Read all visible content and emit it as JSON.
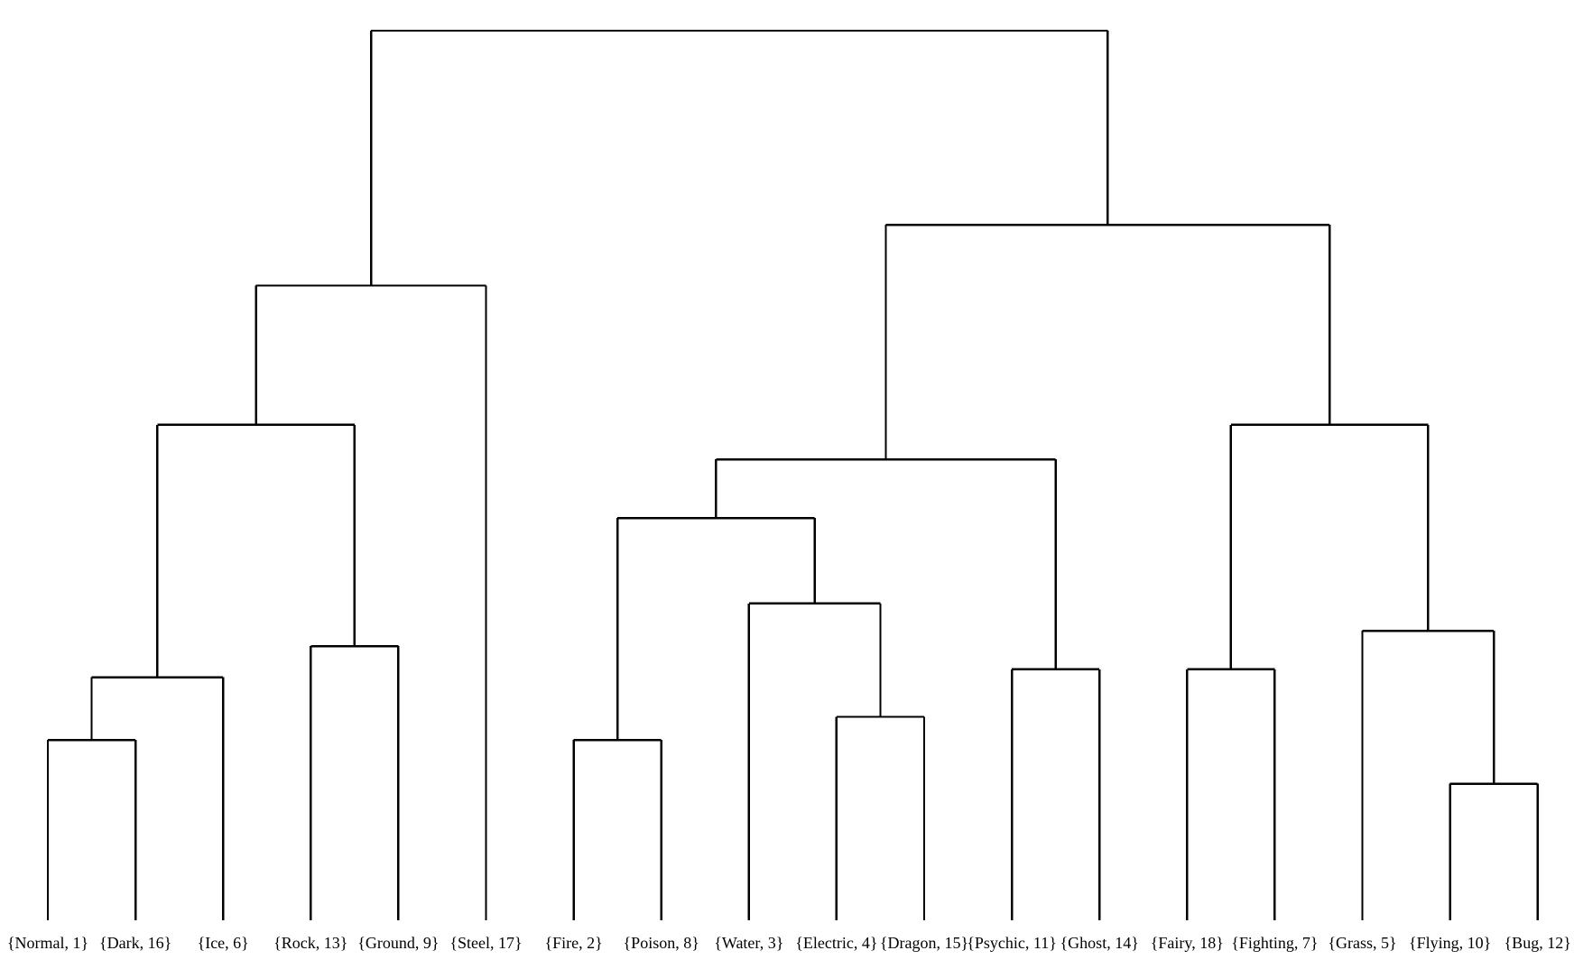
{
  "chart_data": {
    "type": "dendrogram",
    "orientation": "top-down",
    "line_color": "#000000",
    "background": "#ffffff",
    "leaves": [
      "{Normal, 1}",
      "{Dark, 16}",
      "{Ice, 6}",
      "{Rock, 13}",
      "{Ground, 9}",
      "{Steel, 17}",
      "{Fire, 2}",
      "{Poison, 8}",
      "{Water, 3}",
      "{Electric, 4}",
      "{Dragon, 15}",
      "{Psychic, 11}",
      "{Ghost, 14}",
      "{Fairy, 18}",
      "{Fighting, 7}",
      "{Grass, 5}",
      "{Flying, 10}",
      "{Bug, 12}"
    ],
    "tree": {
      "height": 1.0,
      "children": [
        {
          "height": 0.7135,
          "children": [
            {
              "height": 0.557,
              "children": [
                {
                  "height": 0.2731,
                  "children": [
                    {
                      "height": 0.2026,
                      "children": [
                        {
                          "leaf": 0
                        },
                        {
                          "leaf": 1
                        }
                      ]
                    },
                    {
                      "leaf": 2
                    }
                  ]
                },
                {
                  "height": 0.3081,
                  "children": [
                    {
                      "leaf": 3
                    },
                    {
                      "leaf": 4
                    }
                  ]
                }
              ]
            },
            {
              "leaf": 5
            }
          ]
        },
        {
          "height": 0.7818,
          "children": [
            {
              "height": 0.5182,
              "children": [
                {
                  "height": 0.4522,
                  "children": [
                    {
                      "height": 0.2026,
                      "children": [
                        {
                          "leaf": 6
                        },
                        {
                          "leaf": 7
                        }
                      ]
                    },
                    {
                      "height": 0.3561,
                      "children": [
                        {
                          "leaf": 8
                        },
                        {
                          "height": 0.2287,
                          "children": [
                            {
                              "leaf": 9
                            },
                            {
                              "leaf": 10
                            }
                          ]
                        }
                      ]
                    }
                  ]
                },
                {
                  "height": 0.2822,
                  "children": [
                    {
                      "leaf": 11
                    },
                    {
                      "leaf": 12
                    }
                  ]
                }
              ]
            },
            {
              "height": 0.557,
              "children": [
                {
                  "height": 0.2822,
                  "children": [
                    {
                      "leaf": 13
                    },
                    {
                      "leaf": 14
                    }
                  ]
                },
                {
                  "height": 0.3254,
                  "children": [
                    {
                      "leaf": 15
                    },
                    {
                      "height": 0.1536,
                      "children": [
                        {
                          "leaf": 16
                        },
                        {
                          "leaf": 17
                        }
                      ]
                    }
                  ]
                }
              ]
            }
          ]
        }
      ]
    }
  }
}
